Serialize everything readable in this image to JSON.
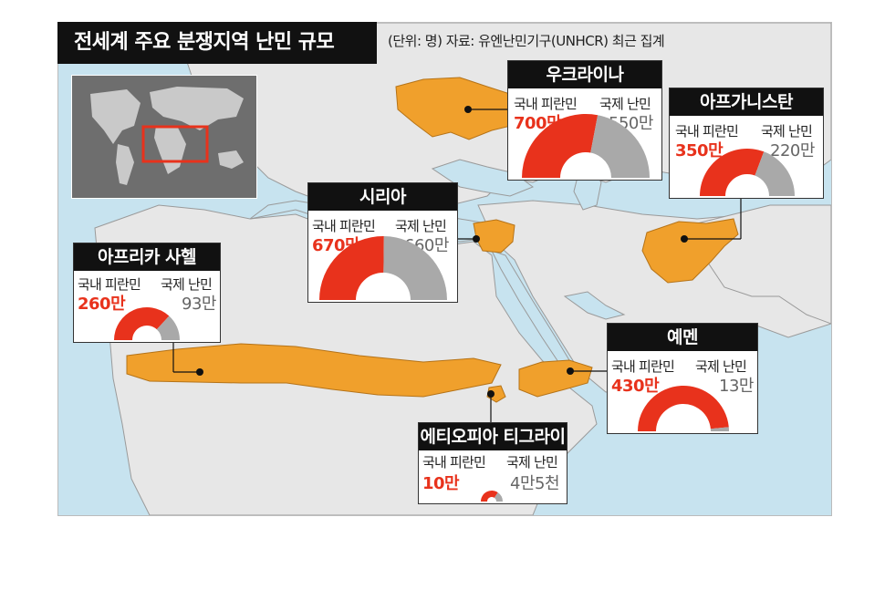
{
  "title": "전세계 주요 분쟁지역 난민 규모",
  "source": "(단위: 명) 자료: 유엔난민기구(UNHCR) 최근 집계",
  "colors": {
    "sea": "#c7e3ef",
    "land": "#e7e7e7",
    "conflict": "#f0a02c",
    "idp": "#e8321c",
    "refugee": "#a9a9a9",
    "inset_bg": "#6e6e6e",
    "inset_highlight": "#e8321c"
  },
  "legend": {
    "idp_label": "국내 피란민",
    "refugee_label": "국제 난민"
  },
  "regions": [
    {
      "id": "ukraine",
      "name": "우크라이나",
      "idp": "700만",
      "refugees": "550만",
      "idp_value": 7000000,
      "refugee_value": 5500000
    },
    {
      "id": "afghanistan",
      "name": "아프가니스탄",
      "idp": "350만",
      "refugees": "220만",
      "idp_value": 3500000,
      "refugee_value": 2200000
    },
    {
      "id": "syria",
      "name": "시리아",
      "idp": "670만",
      "refugees": "660만",
      "idp_value": 6700000,
      "refugee_value": 6600000
    },
    {
      "id": "sahel",
      "name": "아프리카 사헬",
      "idp": "260만",
      "refugees": "93만",
      "idp_value": 2600000,
      "refugee_value": 930000
    },
    {
      "id": "yemen",
      "name": "예멘",
      "idp": "430만",
      "refugees": "13만",
      "idp_value": 4300000,
      "refugee_value": 130000
    },
    {
      "id": "tigray",
      "name": "에티오피아 티그라이",
      "idp": "10만",
      "refugees": "4만5천",
      "idp_value": 100000,
      "refugee_value": 45000
    }
  ]
}
